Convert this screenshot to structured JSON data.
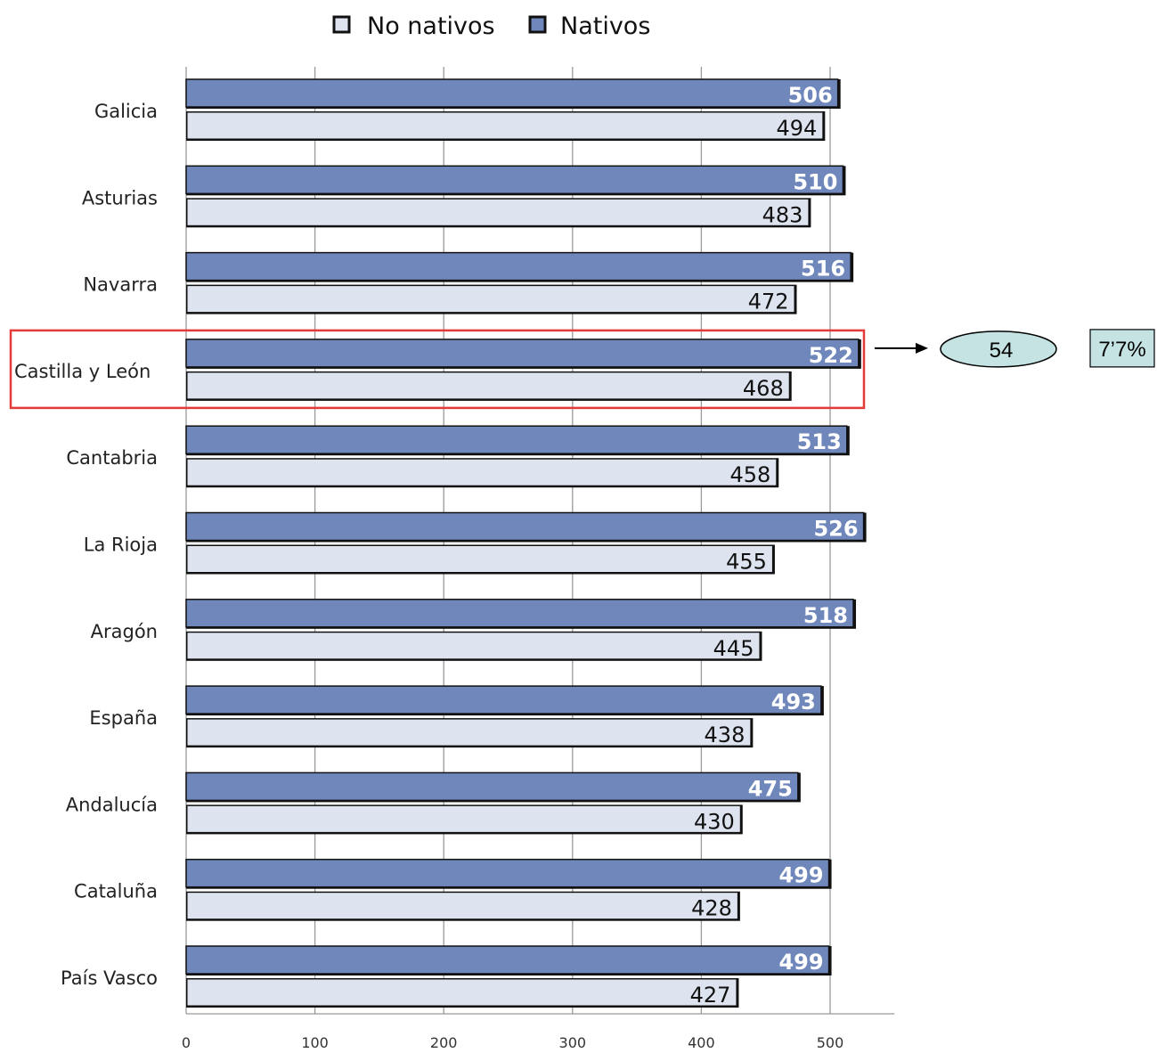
{
  "chart_data": {
    "type": "bar",
    "orientation": "horizontal",
    "categories": [
      "Galicia",
      "Asturias",
      "Navarra",
      "Castilla y León",
      "Cantabria",
      "La Rioja",
      "Aragón",
      "España",
      "Andalucía",
      "Cataluña",
      "País Vasco"
    ],
    "series": [
      {
        "name": "Nativos",
        "values": [
          506,
          510,
          516,
          522,
          513,
          526,
          518,
          493,
          475,
          499,
          499
        ],
        "color": "#6f87bb"
      },
      {
        "name": "No nativos",
        "values": [
          494,
          483,
          472,
          468,
          458,
          455,
          445,
          438,
          430,
          428,
          427
        ],
        "color": "#dde3ef"
      }
    ],
    "legend": [
      {
        "label": "No nativos",
        "color": "#dde3ef"
      },
      {
        "label": "Nativos",
        "color": "#6f87bb"
      }
    ],
    "legend_position": "top",
    "xlim": [
      0,
      550
    ],
    "xticks": [
      0,
      100,
      200,
      300,
      400,
      500
    ],
    "grid": true,
    "highlight": {
      "category": "Castilla y León",
      "difference_label": "54",
      "percent_label": "7’7%",
      "highlight_color": "#e53a3a",
      "bubble_color": "#c6e3e3"
    }
  }
}
